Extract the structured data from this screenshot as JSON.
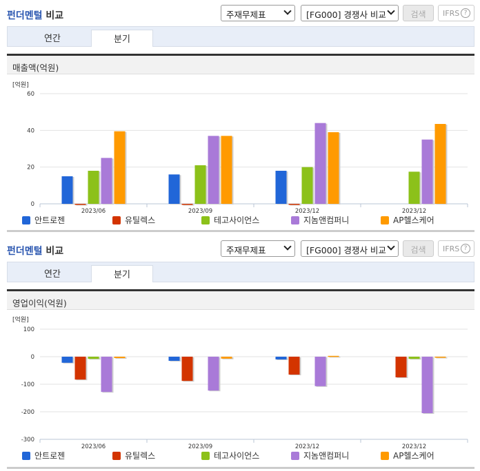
{
  "sections": [
    {
      "header": {
        "title_blue": "펀더멘털",
        "title_rest": " 비교",
        "select1": "주재무제표",
        "select2": "[FG000] 경쟁사 비교",
        "search_label": "검색",
        "ifrs_label": "IFRS",
        "help_glyph": "?"
      },
      "tabs": [
        {
          "label": "연간",
          "active": false
        },
        {
          "label": "분기",
          "active": true
        }
      ],
      "panel_title": "매출액(억원)"
    },
    {
      "header": {
        "title_blue": "펀더멘털",
        "title_rest": " 비교",
        "select1": "주재무제표",
        "select2": "[FG000] 경쟁사 비교",
        "search_label": "검색",
        "ifrs_label": "IFRS",
        "help_glyph": "?"
      },
      "tabs": [
        {
          "label": "연간",
          "active": false
        },
        {
          "label": "분기",
          "active": true
        }
      ],
      "panel_title": "영업이익(억원)"
    }
  ],
  "chart_data": [
    {
      "type": "bar",
      "title": "매출액(억원)",
      "ylabel": "[억원]",
      "xlabel": "",
      "ylim": [
        0,
        60
      ],
      "yticks": [
        0,
        20,
        40,
        60
      ],
      "grid": true,
      "legend_position": "bottom",
      "categories": [
        "2023/06",
        "2023/09",
        "2023/12",
        "2023/12"
      ],
      "series": [
        {
          "name": "안트로젠",
          "color": "#2166d8",
          "values": [
            15,
            16,
            18,
            null
          ]
        },
        {
          "name": "유틸렉스",
          "color": "#d33400",
          "values": [
            0,
            0,
            0,
            null
          ]
        },
        {
          "name": "테고사이언스",
          "color": "#8cc11a",
          "values": [
            18,
            21,
            20,
            17.5
          ]
        },
        {
          "name": "지놈앤컴퍼니",
          "color": "#a97ad8",
          "values": [
            25,
            37,
            44,
            35
          ]
        },
        {
          "name": "AP헬스케어",
          "color": "#ff9a00",
          "values": [
            39.5,
            37,
            39,
            43.5
          ]
        }
      ]
    },
    {
      "type": "bar",
      "title": "영업이익(억원)",
      "ylabel": "[억원]",
      "xlabel": "",
      "ylim": [
        -300,
        100
      ],
      "yticks": [
        100,
        0,
        -100,
        -200,
        -300
      ],
      "grid": true,
      "legend_position": "bottom",
      "categories": [
        "2023/06",
        "2023/09",
        "2023/12",
        "2023/12"
      ],
      "series": [
        {
          "name": "안트로젠",
          "color": "#2166d8",
          "values": [
            -22,
            -15,
            -10,
            null
          ]
        },
        {
          "name": "유틸렉스",
          "color": "#d33400",
          "values": [
            -83,
            -88,
            -65,
            -75
          ]
        },
        {
          "name": "테고사이언스",
          "color": "#8cc11a",
          "values": [
            -8,
            null,
            null,
            -8
          ]
        },
        {
          "name": "지놈앤컴퍼니",
          "color": "#a97ad8",
          "values": [
            -128,
            -123,
            -107,
            -205
          ]
        },
        {
          "name": "AP헬스케어",
          "color": "#ff9a00",
          "values": [
            -5,
            -7,
            3,
            -3
          ]
        }
      ]
    }
  ]
}
